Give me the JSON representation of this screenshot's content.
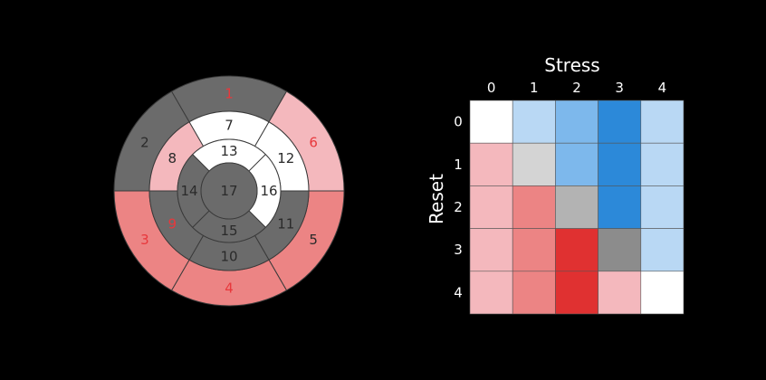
{
  "bullseye": {
    "segments": [
      {
        "id": 1,
        "label": "1",
        "ring": "basal",
        "fill": "#6b6b6b",
        "text_color": "#e8383c"
      },
      {
        "id": 2,
        "label": "2",
        "ring": "basal",
        "fill": "#6b6b6b",
        "text_color": "#2a2a2a"
      },
      {
        "id": 3,
        "label": "3",
        "ring": "basal",
        "fill": "#ec8484",
        "text_color": "#e8383c"
      },
      {
        "id": 4,
        "label": "4",
        "ring": "basal",
        "fill": "#ec8484",
        "text_color": "#e8383c"
      },
      {
        "id": 5,
        "label": "5",
        "ring": "basal",
        "fill": "#ec8484",
        "text_color": "#2a2a2a"
      },
      {
        "id": 6,
        "label": "6",
        "ring": "basal",
        "fill": "#f4b8bd",
        "text_color": "#e8383c"
      },
      {
        "id": 7,
        "label": "7",
        "ring": "mid",
        "fill": "#ffffff",
        "text_color": "#2a2a2a"
      },
      {
        "id": 8,
        "label": "8",
        "ring": "mid",
        "fill": "#f4b8bd",
        "text_color": "#2a2a2a"
      },
      {
        "id": 9,
        "label": "9",
        "ring": "mid",
        "fill": "#6b6b6b",
        "text_color": "#e8383c"
      },
      {
        "id": 10,
        "label": "10",
        "ring": "mid",
        "fill": "#6b6b6b",
        "text_color": "#2a2a2a"
      },
      {
        "id": 11,
        "label": "11",
        "ring": "mid",
        "fill": "#6b6b6b",
        "text_color": "#2a2a2a"
      },
      {
        "id": 12,
        "label": "12",
        "ring": "mid",
        "fill": "#ffffff",
        "text_color": "#2a2a2a"
      },
      {
        "id": 13,
        "label": "13",
        "ring": "apical",
        "fill": "#ffffff",
        "text_color": "#2a2a2a"
      },
      {
        "id": 14,
        "label": "14",
        "ring": "apical",
        "fill": "#6b6b6b",
        "text_color": "#2a2a2a"
      },
      {
        "id": 15,
        "label": "15",
        "ring": "apical",
        "fill": "#6b6b6b",
        "text_color": "#2a2a2a"
      },
      {
        "id": 16,
        "label": "16",
        "ring": "apical",
        "fill": "#ffffff",
        "text_color": "#2a2a2a"
      },
      {
        "id": 17,
        "label": "17",
        "ring": "apex",
        "fill": "#6b6b6b",
        "text_color": "#2a2a2a"
      }
    ]
  },
  "matrix": {
    "x_title": "Stress",
    "y_title": "Reset",
    "x_ticks": [
      "0",
      "1",
      "2",
      "3",
      "4"
    ],
    "y_ticks": [
      "0",
      "1",
      "2",
      "3",
      "4"
    ],
    "cells": [
      [
        "#ffffff",
        "#b9d8f4",
        "#7db8ec",
        "#2c89d9",
        "#b9d8f4"
      ],
      [
        "#f4b8bd",
        "#d4d4d4",
        "#7db8ec",
        "#2c89d9",
        "#b9d8f4"
      ],
      [
        "#f4b8bd",
        "#ec8484",
        "#b3b3b3",
        "#2c89d9",
        "#b9d8f4"
      ],
      [
        "#f4b8bd",
        "#ec8484",
        "#e03131",
        "#8c8c8c",
        "#b9d8f4"
      ],
      [
        "#f4b8bd",
        "#ec8484",
        "#e03131",
        "#f4b8bd",
        "#ffffff"
      ]
    ]
  }
}
